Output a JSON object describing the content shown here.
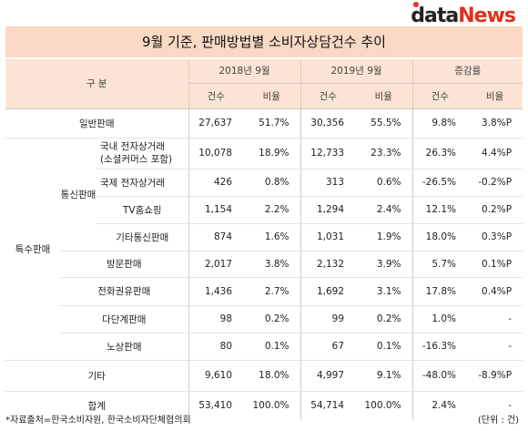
{
  "logo": {
    "part1": "data",
    "part2": "News"
  },
  "title": "9월 기준, 판매방법별 소비자상담건수 추이",
  "header": {
    "category": "구 분",
    "periods": [
      "2018년 9월",
      "2019년 9월",
      "증감률"
    ],
    "sub": [
      "건수",
      "비율",
      "건수",
      "비율",
      "건수",
      "비율"
    ]
  },
  "groups": {
    "special": "특수판매",
    "mail": "통신판매"
  },
  "rows": {
    "general": {
      "label": "일반판매",
      "values": [
        "27,637",
        "51.7%",
        "30,356",
        "55.5%",
        "9.8%",
        "3.8%P"
      ]
    },
    "domestic": {
      "label1": "국내 전자상거래",
      "label2": "(소셜커머스 포함)",
      "values": [
        "10,078",
        "18.9%",
        "12,733",
        "23.3%",
        "26.3%",
        "4.4%P"
      ]
    },
    "intl": {
      "label": "국제 전자상거래",
      "values": [
        "426",
        "0.8%",
        "313",
        "0.6%",
        "-26.5%",
        "-0.2%P"
      ]
    },
    "tv": {
      "label": "TV홈쇼핑",
      "values": [
        "1,154",
        "2.2%",
        "1,294",
        "2.4%",
        "12.1%",
        "0.2%P"
      ]
    },
    "othermail": {
      "label": "기타통신판매",
      "values": [
        "874",
        "1.6%",
        "1,031",
        "1.9%",
        "18.0%",
        "0.3%P"
      ]
    },
    "visit": {
      "label": "방문판매",
      "values": [
        "2,017",
        "3.8%",
        "2,132",
        "3.9%",
        "5.7%",
        "0.1%P"
      ]
    },
    "phone": {
      "label": "전화권유판매",
      "values": [
        "1,436",
        "2.7%",
        "1,692",
        "3.1%",
        "17.8%",
        "0.4%P"
      ]
    },
    "multi": {
      "label": "다단계판매",
      "values": [
        "98",
        "0.2%",
        "99",
        "0.2%",
        "1.0%",
        "-"
      ]
    },
    "street": {
      "label": "노상판매",
      "values": [
        "80",
        "0.1%",
        "67",
        "0.1%",
        "-16.3%",
        "-"
      ]
    },
    "etc": {
      "label": "기타",
      "values": [
        "9,610",
        "18.0%",
        "4,997",
        "9.1%",
        "-48.0%",
        "-8.9%P"
      ]
    },
    "total": {
      "label": "합계",
      "values": [
        "53,410",
        "100.0%",
        "54,714",
        "100.0%",
        "2.4%",
        "-"
      ]
    }
  },
  "footer": {
    "source": "*자료출처=한국소비자원, 한국소비자단체협의회",
    "unit": "(단위 : 건)"
  }
}
